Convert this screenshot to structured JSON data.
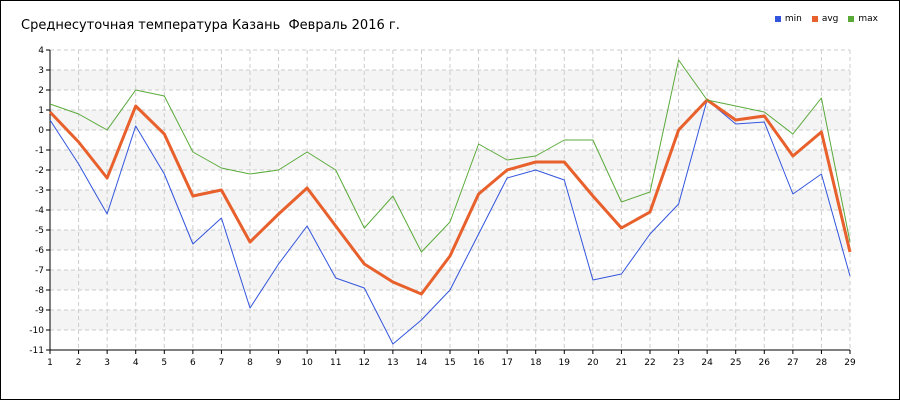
{
  "chart_data": {
    "type": "line",
    "title": "Среднесуточная температура Казань  Февраль 2016 г.",
    "xlabel": "",
    "ylabel": "",
    "x": [
      1,
      2,
      3,
      4,
      5,
      6,
      7,
      8,
      9,
      10,
      11,
      12,
      13,
      14,
      15,
      16,
      17,
      18,
      19,
      20,
      21,
      22,
      23,
      24,
      25,
      26,
      27,
      28,
      29
    ],
    "ylim": [
      -11,
      4
    ],
    "yticks": [
      4,
      3,
      2,
      1,
      0,
      -1,
      -2,
      -3,
      -4,
      -5,
      -6,
      -7,
      -8,
      -9,
      -10,
      -11
    ],
    "grid": true,
    "legend_position": "top-right",
    "series": [
      {
        "name": "min",
        "color": "#3355dd",
        "values": [
          0.5,
          -1.7,
          -4.2,
          0.2,
          -2.2,
          -5.7,
          -4.4,
          -8.9,
          -6.7,
          -4.8,
          -7.4,
          -7.9,
          -10.7,
          -9.5,
          -8.0,
          -5.2,
          -2.4,
          -2.0,
          -2.5,
          -7.5,
          -7.2,
          -5.2,
          -3.7,
          1.5,
          0.3,
          0.4,
          -3.2,
          -2.2,
          -7.3
        ]
      },
      {
        "name": "avg",
        "color": "#e8602c",
        "values": [
          0.9,
          -0.6,
          -2.4,
          1.2,
          -0.2,
          -3.3,
          -3.0,
          -5.6,
          -4.2,
          -2.9,
          -4.8,
          -6.7,
          -7.6,
          -8.2,
          -6.3,
          -3.2,
          -2.0,
          -1.6,
          -1.6,
          -3.3,
          -4.9,
          -4.1,
          0.0,
          1.5,
          0.5,
          0.7,
          -1.3,
          -0.1,
          -6.1
        ]
      },
      {
        "name": "max",
        "color": "#5aaa3a",
        "values": [
          1.3,
          0.8,
          0.0,
          2.0,
          1.7,
          -1.1,
          -1.9,
          -2.2,
          -2.0,
          -1.1,
          -2.0,
          -4.9,
          -3.3,
          -6.1,
          -4.6,
          -0.7,
          -1.5,
          -1.3,
          -0.5,
          -0.5,
          -3.6,
          -3.1,
          3.5,
          1.5,
          1.2,
          0.9,
          -0.2,
          1.6,
          -5.6
        ]
      }
    ]
  }
}
